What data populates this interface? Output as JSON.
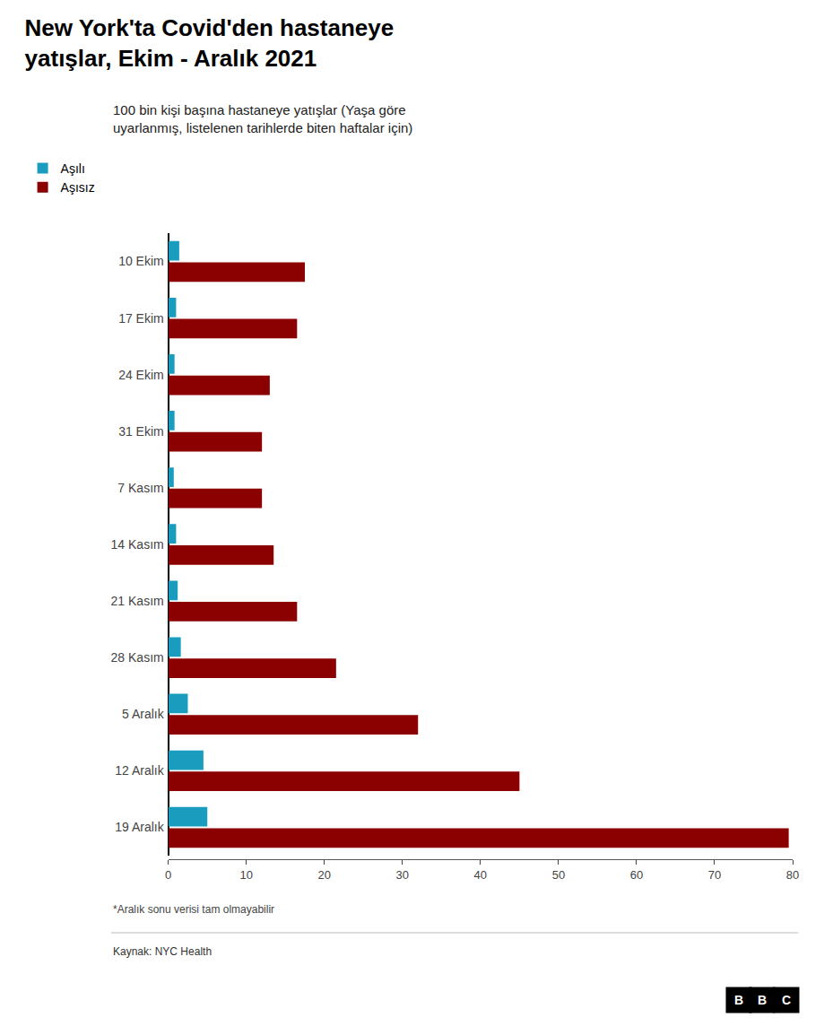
{
  "chart_data": {
    "type": "bar",
    "orientation": "horizontal",
    "title": "New York'ta Covid'den hastaneye\nyatışlar, Ekim - Aralık 2021",
    "subtitle": "100 bin kişi başına hastaneye yatışlar (Yaşa göre\nuyarlanmış, listelenen tarihlerde biten haftalar için)",
    "footnote": "*Aralık sonu verisi tam olmayabilir",
    "source": "Kaynak: NYC Health",
    "annotations": [
      "BBC"
    ],
    "categories": [
      "10 Ekim",
      "17 Ekim",
      "24 Ekim",
      "31 Ekim",
      "7 Kasım",
      "14 Kasım",
      "21 Kasım",
      "28 Kasım",
      "5 Aralık",
      "12 Aralık",
      "19 Aralık"
    ],
    "series": [
      {
        "name": "Aşılı",
        "color": "#1a9cbf",
        "values": [
          1.4,
          1.0,
          0.8,
          0.8,
          0.7,
          1.0,
          1.2,
          1.6,
          2.5,
          4.5,
          5.0
        ]
      },
      {
        "name": "Aşısız",
        "color": "#8b0000",
        "values": [
          17.5,
          16.5,
          13.0,
          12.0,
          12.0,
          13.5,
          16.5,
          21.5,
          32.0,
          45.0,
          79.5
        ]
      }
    ],
    "xlim": [
      0,
      80
    ],
    "xticks": [
      0,
      10,
      20,
      30,
      40,
      50,
      60,
      70,
      80
    ],
    "grid": false,
    "legend": "top left"
  }
}
